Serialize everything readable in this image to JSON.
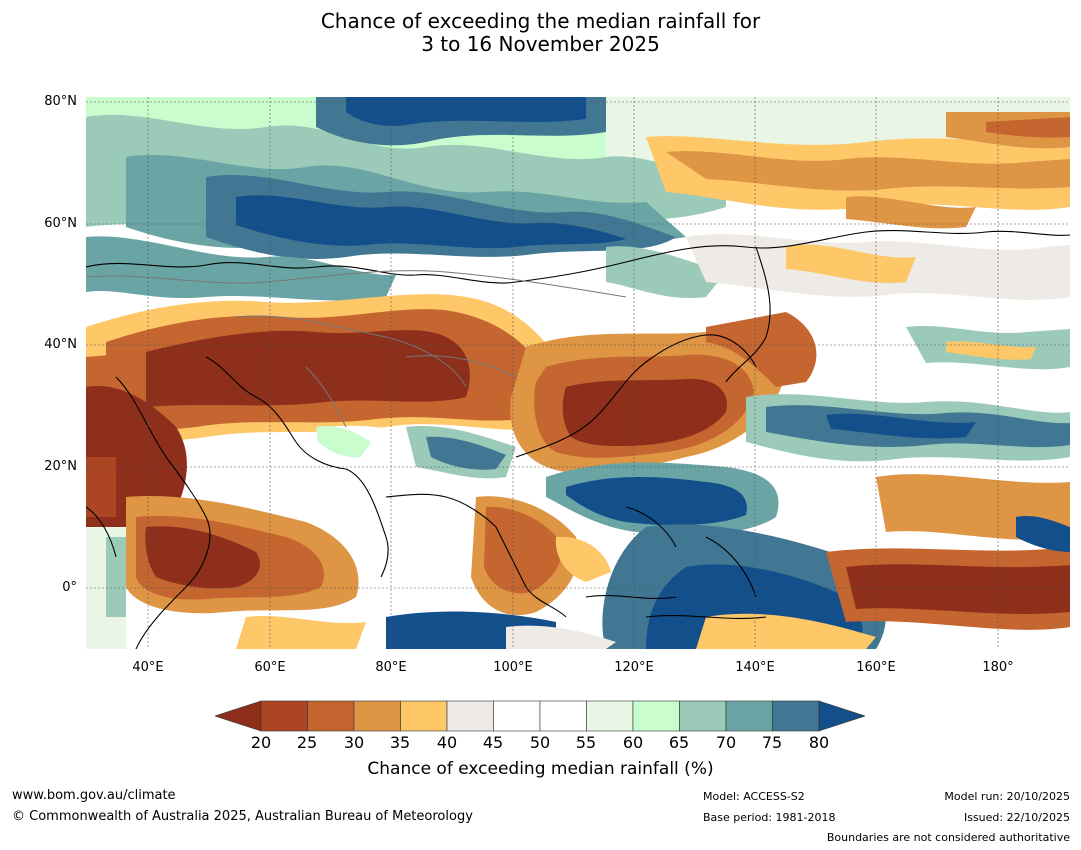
{
  "title": {
    "line1": "Chance of exceeding the median rainfall for",
    "line2": "3 to 16 November 2025"
  },
  "map": {
    "lat_labels": [
      "80°N",
      "60°N",
      "40°N",
      "20°N",
      "0°"
    ],
    "lon_labels": [
      "40°E",
      "60°E",
      "80°E",
      "100°E",
      "120°E",
      "140°E",
      "160°E",
      "180°"
    ],
    "colors": {
      "c20": "#8e2f1c",
      "c25": "#ac4524",
      "c30": "#c5652f",
      "c35": "#de9544",
      "c40": "#fec869",
      "c45": "#eeeae5",
      "c50": "#ffffff",
      "c55": "#ffffff",
      "c60": "#e9f6e6",
      "c65": "#c9fdcd",
      "c70": "#9bcbb8",
      "c75": "#6aa4a4",
      "c80": "#417792",
      "c85": "#134f8a"
    }
  },
  "colorbar": {
    "ticks": [
      "20",
      "25",
      "30",
      "35",
      "40",
      "45",
      "50",
      "55",
      "60",
      "65",
      "70",
      "75",
      "80"
    ],
    "title": "Chance of exceeding median rainfall (%)"
  },
  "footer": {
    "url": "www.bom.gov.au/climate",
    "copyright": "© Commonwealth of Australia 2025, Australian Bureau of Meteorology",
    "model": "Model: ACCESS-S2",
    "base_period": "Base period: 1981-2018",
    "model_run": "Model run: 20/10/2025",
    "issued": "Issued: 22/10/2025",
    "disclaimer": "Boundaries are not considered authoritative"
  }
}
